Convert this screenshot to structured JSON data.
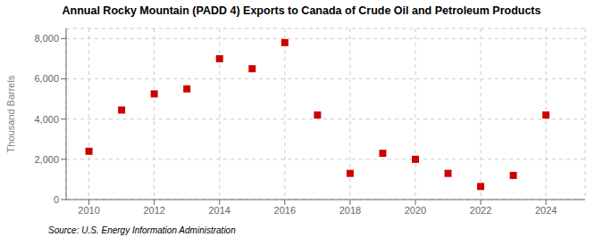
{
  "chart_data": {
    "type": "scatter",
    "title": "Annual Rocky Mountain (PADD 4) Exports to Canada of Crude Oil and Petroleum Products",
    "ylabel": "Thousand Barrels",
    "annotations": [
      "Source: U.S. Energy Information Administration"
    ],
    "x": [
      2010,
      2011,
      2012,
      2013,
      2014,
      2015,
      2016,
      2017,
      2018,
      2019,
      2020,
      2021,
      2022,
      2023,
      2024
    ],
    "values": [
      2400,
      4450,
      5250,
      5500,
      7000,
      6500,
      7800,
      4200,
      1300,
      2300,
      2000,
      1300,
      650,
      1200,
      4200
    ],
    "color": "#cc0000",
    "marker": "square",
    "xlim": [
      2009.3,
      2025.2
    ],
    "ylim": [
      0,
      8500
    ],
    "xticks": [
      2010,
      2012,
      2014,
      2016,
      2018,
      2020,
      2022,
      2024
    ],
    "yticks": [
      0,
      {
        "value": 2000,
        "label": "2,000"
      },
      {
        "value": 4000,
        "label": "4,000"
      },
      {
        "value": 6000,
        "label": "6,000"
      },
      {
        "value": 8000,
        "label": "8,000"
      }
    ],
    "grid": true
  }
}
